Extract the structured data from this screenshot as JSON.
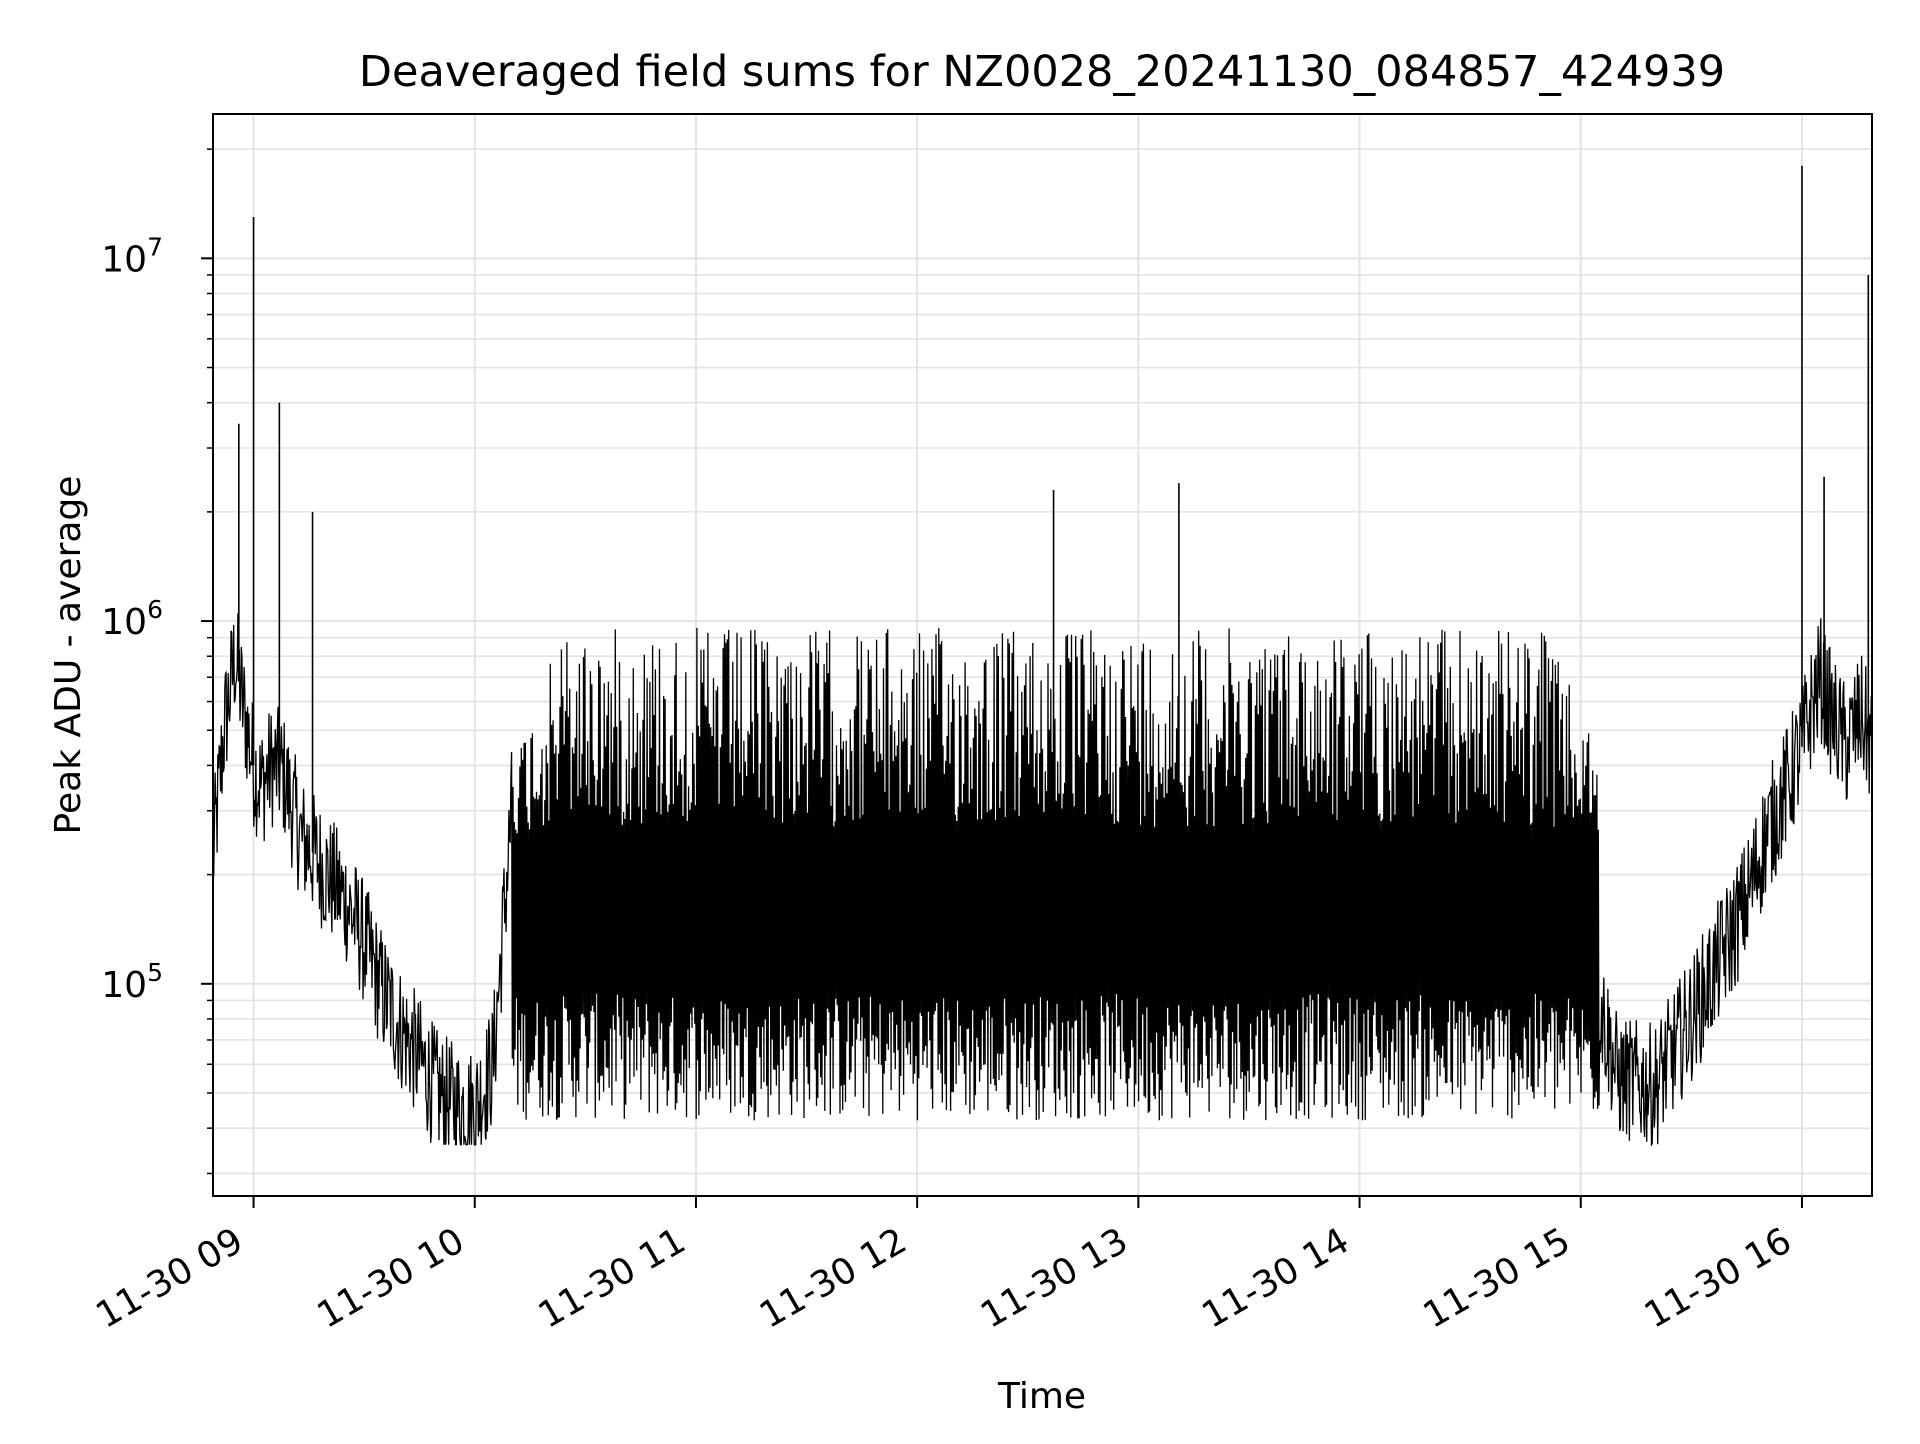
{
  "chart_data": {
    "type": "line",
    "title": "Deaveraged field sums for NZ0028_20241130_084857_424939",
    "xlabel": "Time",
    "ylabel": "Peak ADU - average",
    "y_scale": "log",
    "xlim": [
      "2024-11-30T08:49",
      "2024-11-30T16:19"
    ],
    "ylim": [
      26000,
      25000000
    ],
    "x_ticks": [
      "2024-11-30T09:00",
      "2024-11-30T10:00",
      "2024-11-30T11:00",
      "2024-11-30T12:00",
      "2024-11-30T13:00",
      "2024-11-30T14:00",
      "2024-11-30T15:00",
      "2024-11-30T16:00"
    ],
    "x_tick_labels": [
      "11-30 09",
      "11-30 10",
      "11-30 11",
      "11-30 12",
      "11-30 13",
      "11-30 14",
      "11-30 15",
      "11-30 16"
    ],
    "y_ticks": [
      100000,
      1000000,
      10000000
    ],
    "y_tick_labels": [
      {
        "base": "10",
        "exp": "5"
      },
      {
        "base": "10",
        "exp": "6"
      },
      {
        "base": "10",
        "exp": "7"
      }
    ],
    "grid": true,
    "line_color": "#000000",
    "series": [
      {
        "x": [
          "2024-11-30T08:49",
          "2024-11-30T08:52",
          "2024-11-30T08:55",
          "2024-11-30T08:57",
          "2024-11-30T09:00",
          "2024-11-30T09:02",
          "2024-11-30T09:05",
          "2024-11-30T09:08",
          "2024-11-30T09:10",
          "2024-11-30T09:13",
          "2024-11-30T09:16",
          "2024-11-30T09:20",
          "2024-11-30T09:25",
          "2024-11-30T09:30",
          "2024-11-30T09:35",
          "2024-11-30T09:40",
          "2024-11-30T09:45",
          "2024-11-30T09:50",
          "2024-11-30T09:55",
          "2024-11-30T10:00",
          "2024-11-30T10:05",
          "2024-11-30T10:10",
          "2024-11-30T10:20",
          "2024-11-30T10:35",
          "2024-11-30T10:50",
          "2024-11-30T11:05",
          "2024-11-30T11:20",
          "2024-11-30T11:35",
          "2024-11-30T11:50",
          "2024-11-30T12:05",
          "2024-11-30T12:20",
          "2024-11-30T12:35",
          "2024-11-30T12:50",
          "2024-11-30T13:05",
          "2024-11-30T13:20",
          "2024-11-30T13:35",
          "2024-11-30T13:50",
          "2024-11-30T14:05",
          "2024-11-30T14:20",
          "2024-11-30T14:35",
          "2024-11-30T14:50",
          "2024-11-30T15:00",
          "2024-11-30T15:10",
          "2024-11-30T15:20",
          "2024-11-30T15:30",
          "2024-11-30T15:40",
          "2024-11-30T15:45",
          "2024-11-30T15:50",
          "2024-11-30T15:55",
          "2024-11-30T16:00",
          "2024-11-30T16:02",
          "2024-11-30T16:05",
          "2024-11-30T16:08",
          "2024-11-30T16:12",
          "2024-11-30T16:16",
          "2024-11-30T16:19"
        ],
        "y": [
          220000,
          500000,
          800000,
          600000,
          400000,
          350000,
          400000,
          380000,
          320000,
          250000,
          230000,
          200000,
          170000,
          130000,
          95000,
          75000,
          62000,
          50000,
          46000,
          45000,
          60000,
          300000,
          400000,
          300000,
          350000,
          400000,
          400000,
          400000,
          350000,
          400000,
          400000,
          450000,
          400000,
          350000,
          300000,
          300000,
          250000,
          230000,
          200000,
          180000,
          160000,
          150000,
          55000,
          52000,
          80000,
          130000,
          170000,
          250000,
          330000,
          450000,
          550000,
          700000,
          550000,
          450000,
          550000,
          450000
        ]
      }
    ],
    "spikes": [
      {
        "x": "2024-11-30T09:00",
        "y": 13000000
      },
      {
        "x": "2024-11-30T08:56",
        "y": 3500000
      },
      {
        "x": "2024-11-30T09:07",
        "y": 4000000
      },
      {
        "x": "2024-11-30T09:16",
        "y": 2000000
      },
      {
        "x": "2024-11-30T12:37",
        "y": 2300000
      },
      {
        "x": "2024-11-30T13:11",
        "y": 2400000
      },
      {
        "x": "2024-11-30T16:00",
        "y": 18000000
      },
      {
        "x": "2024-11-30T16:06",
        "y": 2500000
      },
      {
        "x": "2024-11-30T16:18",
        "y": 9000000
      }
    ]
  }
}
